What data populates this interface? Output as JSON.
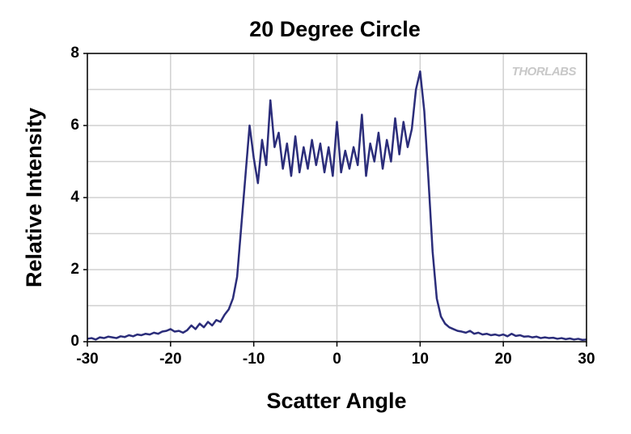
{
  "chart_data": {
    "type": "line",
    "title": "20 Degree Circle",
    "xlabel": "Scatter Angle",
    "ylabel": "Relative Intensity",
    "watermark": "THORLABS",
    "x": [
      -30,
      -29.5,
      -29,
      -28.5,
      -28,
      -27.5,
      -27,
      -26.5,
      -26,
      -25.5,
      -25,
      -24.5,
      -24,
      -23.5,
      -23,
      -22.5,
      -22,
      -21.5,
      -21,
      -20.5,
      -20,
      -19.5,
      -19,
      -18.5,
      -18,
      -17.5,
      -17,
      -16.5,
      -16,
      -15.5,
      -15,
      -14.5,
      -14,
      -13.5,
      -13,
      -12.5,
      -12,
      -11.5,
      -11,
      -10.5,
      -10,
      -9.5,
      -9,
      -8.5,
      -8,
      -7.5,
      -7,
      -6.5,
      -6,
      -5.5,
      -5,
      -4.5,
      -4,
      -3.5,
      -3,
      -2.5,
      -2,
      -1.5,
      -1,
      -0.5,
      0,
      0.5,
      1,
      1.5,
      2,
      2.5,
      3,
      3.5,
      4,
      4.5,
      5,
      5.5,
      6,
      6.5,
      7,
      7.5,
      8,
      8.5,
      9,
      9.5,
      10,
      10.5,
      11,
      11.5,
      12,
      12.5,
      13,
      13.5,
      14,
      14.5,
      15,
      15.5,
      16,
      16.5,
      17,
      17.5,
      18,
      18.5,
      19,
      19.5,
      20,
      20.5,
      21,
      21.5,
      22,
      22.5,
      23,
      23.5,
      24,
      24.5,
      25,
      25.5,
      26,
      26.5,
      27,
      27.5,
      28,
      28.5,
      29,
      29.5,
      30
    ],
    "series": [
      {
        "color": "#2b2d7a",
        "values": [
          0.08,
          0.1,
          0.06,
          0.12,
          0.1,
          0.14,
          0.12,
          0.1,
          0.15,
          0.13,
          0.18,
          0.15,
          0.2,
          0.18,
          0.22,
          0.2,
          0.25,
          0.22,
          0.28,
          0.3,
          0.35,
          0.28,
          0.3,
          0.25,
          0.32,
          0.45,
          0.35,
          0.5,
          0.4,
          0.55,
          0.45,
          0.6,
          0.55,
          0.75,
          0.9,
          1.2,
          1.8,
          3.2,
          4.6,
          6.0,
          5.1,
          4.4,
          5.6,
          4.9,
          6.7,
          5.4,
          5.8,
          4.8,
          5.5,
          4.6,
          5.7,
          4.7,
          5.4,
          4.8,
          5.6,
          4.9,
          5.5,
          4.7,
          5.4,
          4.6,
          6.1,
          4.7,
          5.3,
          4.8,
          5.4,
          4.9,
          6.3,
          4.6,
          5.5,
          5.0,
          5.8,
          4.8,
          5.6,
          5.0,
          6.2,
          5.2,
          6.1,
          5.4,
          5.9,
          7.0,
          7.5,
          6.4,
          4.5,
          2.5,
          1.2,
          0.7,
          0.5,
          0.4,
          0.35,
          0.3,
          0.28,
          0.25,
          0.3,
          0.22,
          0.25,
          0.2,
          0.22,
          0.18,
          0.2,
          0.17,
          0.2,
          0.15,
          0.22,
          0.16,
          0.18,
          0.14,
          0.15,
          0.12,
          0.14,
          0.1,
          0.12,
          0.1,
          0.11,
          0.08,
          0.1,
          0.07,
          0.09,
          0.06,
          0.08,
          0.05,
          0.06
        ]
      }
    ],
    "xlim": [
      -30,
      30
    ],
    "xticks": [
      -30,
      -20,
      -10,
      0,
      10,
      20,
      30
    ],
    "ylim": [
      0,
      8
    ],
    "yticks": [
      0,
      2,
      4,
      6,
      8
    ],
    "y_minor_grid": [
      1,
      3,
      5,
      7
    ],
    "grid": true
  }
}
